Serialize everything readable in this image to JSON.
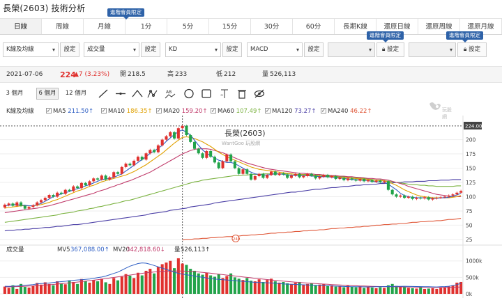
{
  "title": "長榮(2603) 技術分析",
  "tabs": [
    {
      "label": "日線",
      "active": true
    },
    {
      "label": "周線"
    },
    {
      "label": "月線"
    },
    {
      "label": "1分"
    },
    {
      "label": "5分"
    },
    {
      "label": "15分"
    },
    {
      "label": "30分"
    },
    {
      "label": "60分"
    },
    {
      "label": "長期K線"
    },
    {
      "label": "還原日線"
    },
    {
      "label": "還原周線"
    },
    {
      "label": "還原月線"
    }
  ],
  "badges": {
    "minute_tabs": "進階會員限定",
    "indicator_1": "進階會員限定",
    "indicator_2": "進階會員限定"
  },
  "selects": [
    {
      "value": "K線及均線",
      "button": "設定"
    },
    {
      "value": "成交量",
      "button": "設定"
    },
    {
      "value": "KD",
      "button": "設定"
    },
    {
      "value": "MACD",
      "button": "設定"
    },
    {
      "value": "",
      "button": "設定",
      "disabled": true
    },
    {
      "value": "",
      "button": "設定",
      "disabled": true
    }
  ],
  "quote": {
    "date": "2021-07-06",
    "price": "224",
    "change": "▲7 (3.23%)",
    "open_label": "開",
    "open": "218.5",
    "high_label": "高",
    "high": "233",
    "low_label": "低",
    "low": "212",
    "vol_label": "量",
    "volume": "526,113"
  },
  "periods": [
    "3 個月",
    "6 個月",
    "12 個月"
  ],
  "active_period": "6 個月",
  "tool_icons": [
    "line-tool-icon",
    "horizontal-line-icon",
    "wave-tool-icon",
    "pattern-tool-icon",
    "text-label-icon",
    "circle-tool-icon",
    "rectangle-tool-icon",
    "fibonacci-tool-icon",
    "trash-icon",
    "hide-icon"
  ],
  "ma_legend": {
    "title": "K線及均線",
    "items": [
      {
        "label": "MA5",
        "value": "211.50↑",
        "color": "#2f5fc4"
      },
      {
        "label": "MA10",
        "value": "186.35↑",
        "color": "#e0a100"
      },
      {
        "label": "MA20",
        "value": "159.20↑",
        "color": "#c03a6a"
      },
      {
        "label": "MA60",
        "value": "107.49↑",
        "color": "#7cb342"
      },
      {
        "label": "MA120",
        "value": "73.27↑",
        "color": "#4b3fa6"
      },
      {
        "label": "MA240",
        "value": "46.22↑",
        "color": "#e0593a"
      }
    ]
  },
  "watermark": {
    "brand": "玩股網"
  },
  "chart_data": {
    "type": "candlestick",
    "title": "長榮(2603)",
    "subtitle": "WantGoo 玩股網",
    "current_price_label": "224.00",
    "y_ticks": [
      200,
      175,
      150,
      125,
      100,
      75,
      50,
      25
    ],
    "ylim": [
      20,
      230
    ],
    "ma240_marker": "240",
    "candles": [
      [
        81,
        86
      ],
      [
        85,
        88
      ],
      [
        88,
        84
      ],
      [
        84,
        90
      ],
      [
        90,
        84
      ],
      [
        84,
        79
      ],
      [
        79,
        82
      ],
      [
        82,
        85
      ],
      [
        85,
        90
      ],
      [
        90,
        94
      ],
      [
        94,
        98
      ],
      [
        98,
        103
      ],
      [
        103,
        100
      ],
      [
        100,
        107
      ],
      [
        107,
        105
      ],
      [
        105,
        112
      ],
      [
        112,
        110
      ],
      [
        110,
        118
      ],
      [
        118,
        115
      ],
      [
        115,
        124
      ],
      [
        124,
        120
      ],
      [
        120,
        127
      ],
      [
        127,
        132
      ],
      [
        132,
        130
      ],
      [
        130,
        137
      ],
      [
        137,
        130
      ],
      [
        130,
        134
      ],
      [
        134,
        143
      ],
      [
        143,
        140
      ],
      [
        140,
        152
      ],
      [
        152,
        158
      ],
      [
        158,
        155
      ],
      [
        155,
        163
      ],
      [
        163,
        170
      ],
      [
        170,
        165
      ],
      [
        165,
        176
      ],
      [
        176,
        182
      ],
      [
        182,
        178
      ],
      [
        178,
        190
      ],
      [
        190,
        200
      ],
      [
        200,
        206
      ],
      [
        206,
        213
      ],
      [
        213,
        202
      ],
      [
        202,
        220
      ],
      [
        220,
        224
      ],
      [
        224,
        208
      ],
      [
        208,
        196
      ],
      [
        196,
        184
      ],
      [
        184,
        176
      ],
      [
        176,
        168
      ],
      [
        168,
        180
      ],
      [
        180,
        170
      ],
      [
        170,
        160
      ],
      [
        160,
        150
      ],
      [
        150,
        162
      ],
      [
        162,
        174
      ],
      [
        174,
        162
      ],
      [
        162,
        150
      ],
      [
        150,
        140
      ],
      [
        140,
        148
      ],
      [
        148,
        140
      ],
      [
        140,
        130
      ],
      [
        130,
        136
      ],
      [
        136,
        140
      ],
      [
        140,
        133
      ],
      [
        133,
        138
      ],
      [
        138,
        144
      ],
      [
        144,
        138
      ],
      [
        138,
        141
      ],
      [
        141,
        139
      ],
      [
        139,
        133
      ],
      [
        133,
        137
      ],
      [
        137,
        140
      ],
      [
        140,
        134
      ],
      [
        134,
        136
      ],
      [
        136,
        140
      ],
      [
        140,
        137
      ],
      [
        137,
        132
      ],
      [
        132,
        135
      ],
      [
        135,
        138
      ],
      [
        138,
        134
      ],
      [
        134,
        136
      ],
      [
        136,
        131
      ],
      [
        131,
        133
      ],
      [
        133,
        129
      ],
      [
        129,
        132
      ],
      [
        132,
        130
      ],
      [
        130,
        128
      ],
      [
        128,
        131
      ],
      [
        131,
        127
      ],
      [
        127,
        129
      ],
      [
        129,
        126
      ],
      [
        126,
        128
      ],
      [
        128,
        125
      ],
      [
        125,
        127
      ],
      [
        127,
        112
      ],
      [
        112,
        104
      ],
      [
        104,
        100
      ],
      [
        100,
        102
      ],
      [
        102,
        98
      ],
      [
        98,
        100
      ],
      [
        100,
        96
      ],
      [
        96,
        98
      ],
      [
        98,
        97
      ],
      [
        97,
        99
      ],
      [
        99,
        95
      ],
      [
        95,
        97
      ],
      [
        97,
        98
      ],
      [
        98,
        99
      ],
      [
        99,
        100
      ],
      [
        100,
        102
      ],
      [
        102,
        104
      ],
      [
        104,
        107
      ],
      [
        107,
        110
      ]
    ],
    "ma5": [
      84,
      85,
      86,
      86,
      85,
      85,
      84,
      84,
      86,
      88,
      92,
      96,
      100,
      102,
      105,
      107,
      109,
      112,
      114,
      116,
      119,
      121,
      124,
      127,
      130,
      131,
      132,
      134,
      137,
      140,
      145,
      150,
      155,
      160,
      165,
      170,
      176,
      180,
      185,
      190,
      197,
      203,
      209,
      214,
      217,
      213,
      208,
      199,
      190,
      182,
      176,
      172,
      168,
      164,
      162,
      160,
      160,
      158,
      154,
      150,
      146,
      143,
      140,
      139,
      138,
      138,
      139,
      140,
      140,
      139,
      138,
      138,
      137,
      137,
      137,
      137,
      136,
      136,
      135,
      135,
      135,
      134,
      134,
      133,
      132,
      131,
      130,
      130,
      129,
      129,
      128,
      127,
      126,
      126,
      125,
      122,
      117,
      112,
      106,
      102,
      100,
      99,
      98,
      98,
      98,
      97,
      97,
      97,
      98,
      98,
      99,
      101,
      103,
      106
    ],
    "ma10": [
      80,
      81,
      82,
      83,
      84,
      84,
      84,
      84,
      85,
      86,
      88,
      90,
      93,
      95,
      98,
      101,
      104,
      107,
      110,
      112,
      115,
      118,
      120,
      123,
      126,
      128,
      130,
      132,
      134,
      136,
      138,
      141,
      144,
      148,
      152,
      156,
      161,
      166,
      171,
      176,
      182,
      188,
      194,
      199,
      204,
      205,
      204,
      202,
      199,
      196,
      192,
      188,
      183,
      178,
      174,
      170,
      167,
      164,
      161,
      158,
      155,
      152,
      150,
      148,
      147,
      146,
      145,
      144,
      143,
      142,
      141,
      140,
      139,
      139,
      138,
      138,
      137,
      137,
      136,
      136,
      136,
      135,
      135,
      134,
      134,
      133,
      132,
      132,
      131,
      131,
      130,
      129,
      129,
      128,
      128,
      126,
      123,
      120,
      116,
      112,
      109,
      106,
      103,
      101,
      100,
      99,
      98,
      98,
      98,
      98,
      98,
      99,
      100,
      102
    ],
    "ma20": [
      72,
      73,
      74,
      75,
      76,
      77,
      78,
      79,
      80,
      81,
      83,
      84,
      86,
      88,
      90,
      92,
      94,
      96,
      98,
      100,
      102,
      104,
      106,
      109,
      111,
      113,
      116,
      118,
      121,
      123,
      126,
      128,
      131,
      134,
      137,
      140,
      143,
      147,
      151,
      155,
      159,
      163,
      167,
      171,
      175,
      178,
      181,
      183,
      184,
      184,
      184,
      183,
      181,
      179,
      177,
      174,
      171,
      168,
      165,
      162,
      159,
      157,
      155,
      153,
      151,
      149,
      148,
      147,
      146,
      145,
      144,
      143,
      142,
      141,
      141,
      140,
      140,
      139,
      139,
      138,
      138,
      137,
      137,
      136,
      136,
      135,
      135,
      134,
      134,
      133,
      132,
      132,
      131,
      131,
      130,
      129,
      127,
      125,
      123,
      121,
      118,
      116,
      114,
      112,
      110,
      108,
      106,
      104,
      103,
      102,
      101,
      100,
      100,
      100
    ],
    "ma60": [
      55,
      56,
      57,
      58,
      59,
      60,
      61,
      62,
      63,
      64,
      65,
      66,
      67,
      68,
      70,
      71,
      72,
      73,
      75,
      76,
      77,
      79,
      80,
      82,
      83,
      85,
      86,
      88,
      89,
      91,
      93,
      94,
      96,
      98,
      100,
      102,
      104,
      106,
      108,
      110,
      112,
      114,
      116,
      118,
      120,
      122,
      124,
      126,
      127,
      129,
      130,
      131,
      132,
      133,
      134,
      135,
      136,
      137,
      137,
      138,
      138,
      139,
      139,
      139,
      140,
      140,
      140,
      140,
      140,
      140,
      140,
      140,
      139,
      139,
      139,
      139,
      138,
      138,
      138,
      137,
      137,
      136,
      136,
      135,
      135,
      134,
      134,
      133,
      132,
      132,
      131,
      130,
      129,
      129,
      128,
      127,
      126,
      125,
      124,
      123,
      122,
      121,
      121,
      120,
      120,
      119,
      119,
      118,
      118,
      118,
      118,
      118,
      119,
      119
    ],
    "ma120": [
      40,
      41,
      41,
      42,
      42,
      43,
      43,
      44,
      44,
      45,
      46,
      46,
      47,
      48,
      48,
      49,
      50,
      51,
      51,
      52,
      53,
      54,
      55,
      56,
      57,
      58,
      59,
      60,
      61,
      62,
      63,
      64,
      65,
      66,
      67,
      68,
      70,
      71,
      72,
      73,
      74,
      76,
      77,
      78,
      79,
      80,
      82,
      83,
      84,
      85,
      86,
      87,
      89,
      90,
      91,
      92,
      93,
      94,
      95,
      96,
      97,
      98,
      99,
      100,
      101,
      102,
      103,
      104,
      105,
      106,
      107,
      108,
      108,
      109,
      110,
      111,
      112,
      113,
      113,
      114,
      115,
      116,
      116,
      117,
      118,
      118,
      119,
      120,
      120,
      121,
      121,
      122,
      122,
      123,
      123,
      124,
      124,
      125,
      125,
      126,
      126,
      126,
      127,
      127,
      127,
      128,
      128,
      128,
      129,
      129,
      129,
      130,
      130,
      130
    ],
    "ma240_start_index": 44,
    "ma240": [
      24,
      25,
      25,
      26,
      26,
      27,
      27,
      28,
      28,
      29,
      29,
      30,
      30,
      31,
      31,
      32,
      32,
      33,
      33,
      34,
      34,
      35,
      36,
      36,
      37,
      37,
      38,
      38,
      39,
      39,
      40,
      40,
      41,
      41,
      42,
      42,
      43,
      44,
      44,
      45,
      45,
      46,
      46,
      47,
      47,
      48,
      48,
      49,
      50,
      50,
      51,
      51,
      52,
      52,
      53,
      53,
      54,
      55,
      55,
      56,
      56,
      57,
      57,
      58,
      58,
      59,
      60,
      60,
      61,
      62
    ],
    "volume_legend": {
      "title": "成交量",
      "items": [
        {
          "label": "MV5",
          "value": "367,088.00↑",
          "color": "#2f5fc4"
        },
        {
          "label": "MV20",
          "value": "342,818.60↓",
          "color": "#c03a6a"
        },
        {
          "label": "量",
          "value": "526,113↑",
          "color": "#333333"
        }
      ]
    },
    "vol_ticks": [
      "1000k",
      "500k",
      "0k"
    ],
    "vol_ylim": [
      0,
      1100
    ],
    "volume": [
      220,
      180,
      260,
      150,
      300,
      210,
      190,
      240,
      330,
      280,
      350,
      300,
      260,
      380,
      320,
      290,
      410,
      360,
      300,
      450,
      390,
      340,
      420,
      380,
      460,
      350,
      300,
      480,
      410,
      520,
      600,
      550,
      480,
      640,
      560,
      700,
      760,
      620,
      820,
      900,
      950,
      1000,
      780,
      1080,
      920,
      880,
      760,
      700,
      620,
      580,
      640,
      560,
      520,
      600,
      480,
      540,
      620,
      500,
      460,
      420,
      480,
      400,
      380,
      440,
      360,
      420,
      460,
      380,
      340,
      360,
      320,
      300,
      340,
      360,
      280,
      300,
      320,
      260,
      280,
      300,
      240,
      260,
      220,
      240,
      200,
      260,
      220,
      200,
      230,
      180,
      210,
      190,
      170,
      200,
      180,
      260,
      300,
      240,
      220,
      200,
      180,
      170,
      160,
      190,
      150,
      160,
      170,
      150,
      180,
      200,
      220,
      260,
      340,
      360
    ],
    "mv5": [
      230,
      228,
      232,
      240,
      250,
      262,
      270,
      280,
      300,
      310,
      320,
      330,
      345,
      360,
      370,
      380,
      395,
      410,
      420,
      430,
      440,
      450,
      470,
      490,
      510,
      540,
      580,
      620,
      660,
      720,
      780,
      840,
      880,
      920,
      940,
      930,
      900,
      860,
      820,
      780,
      740,
      700,
      660,
      620,
      600,
      580,
      560,
      540,
      520,
      500,
      480,
      460,
      450,
      440,
      430,
      420,
      410,
      400,
      390,
      380,
      370,
      360,
      350,
      345,
      340,
      335,
      330,
      320,
      310,
      300,
      295,
      290,
      285,
      280,
      275,
      270,
      265,
      260,
      255,
      250,
      245,
      240,
      235,
      230,
      225,
      220,
      218,
      216,
      214,
      212,
      210,
      212,
      215,
      218,
      220,
      222,
      224,
      226,
      228,
      230,
      228,
      225,
      222,
      220,
      218,
      215,
      212,
      210,
      215,
      220,
      230,
      250,
      280,
      320
    ],
    "mv20": [
      210,
      212,
      215,
      220,
      225,
      230,
      236,
      242,
      250,
      258,
      266,
      275,
      285,
      296,
      308,
      320,
      332,
      345,
      358,
      372,
      386,
      400,
      415,
      430,
      446,
      462,
      480,
      498,
      516,
      534,
      552,
      570,
      588,
      606,
      622,
      638,
      652,
      664,
      674,
      682,
      688,
      692,
      694,
      694,
      692,
      688,
      682,
      674,
      664,
      652,
      640,
      626,
      612,
      598,
      584,
      570,
      556,
      542,
      528,
      514,
      500,
      486,
      472,
      458,
      446,
      434,
      422,
      410,
      398,
      386,
      376,
      366,
      356,
      346,
      336,
      328,
      320,
      312,
      304,
      296,
      289,
      282,
      275,
      268,
      262,
      256,
      250,
      245,
      240,
      236,
      232,
      228,
      225,
      222,
      220,
      218,
      216,
      214,
      212,
      210,
      208,
      206,
      204,
      202,
      200,
      198,
      197,
      196,
      196,
      197,
      198,
      200,
      203,
      206
    ]
  }
}
